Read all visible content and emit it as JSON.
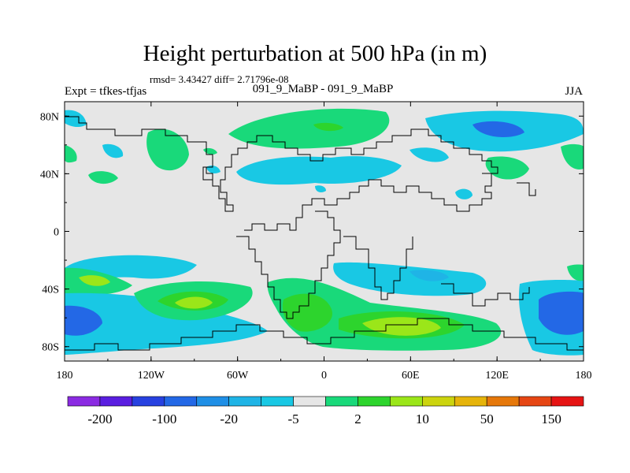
{
  "header": {
    "title": "Height perturbation at 500 hPa (in m)",
    "stats": "rmsd= 3.43427 diff= 2.71796e-08",
    "left_label": "Expt = tfkes-tfjas",
    "center_label": "091_9_MaBP - 091_9_MaBP",
    "right_label": "JJA"
  },
  "chart_data": {
    "type": "heatmap",
    "title": "Height perturbation at 500 hPa (in m)",
    "x_ticks": [
      {
        "value": -180,
        "label": "180"
      },
      {
        "value": -120,
        "label": "120W"
      },
      {
        "value": -60,
        "label": "60W"
      },
      {
        "value": 0,
        "label": "0"
      },
      {
        "value": 60,
        "label": "60E"
      },
      {
        "value": 120,
        "label": "120E"
      },
      {
        "value": 180,
        "label": "180"
      }
    ],
    "y_ticks": [
      {
        "value": 80,
        "label": "80N"
      },
      {
        "value": 40,
        "label": "40N"
      },
      {
        "value": 0,
        "label": "0"
      },
      {
        "value": -40,
        "label": "40S"
      },
      {
        "value": -80,
        "label": "80S"
      }
    ],
    "xlim": [
      -180,
      180
    ],
    "ylim": [
      -90,
      90
    ],
    "colorbar": {
      "colors": [
        "#8b2be2",
        "#5a1ee0",
        "#2741e0",
        "#2368e6",
        "#1f8fe6",
        "#1fb4e6",
        "#19c8e4",
        "#e6e6e6",
        "#19d97a",
        "#2dd42d",
        "#9be619",
        "#ccd40e",
        "#e6b40a",
        "#e6780a",
        "#e64614",
        "#e61414"
      ],
      "labels": [
        "-200",
        "-100",
        "-20",
        "-5",
        "2",
        "10",
        "50",
        "150"
      ]
    },
    "field": [
      {
        "lon": -178,
        "lat": 82,
        "value": -5
      },
      {
        "lon": -175,
        "lat": 65,
        "value": 5
      },
      {
        "lon": -150,
        "lat": 58,
        "value": -5
      },
      {
        "lon": -165,
        "lat": 43,
        "value": 5
      },
      {
        "lon": -95,
        "lat": 48,
        "value": 5
      },
      {
        "lon": -77,
        "lat": 57,
        "value": 2
      },
      {
        "lon": -72,
        "lat": 42,
        "value": -5
      },
      {
        "lon": -28,
        "lat": 82,
        "value": 5
      },
      {
        "lon": 0,
        "lat": 78,
        "value": 10
      },
      {
        "lon": 27,
        "lat": 50,
        "value": -5
      },
      {
        "lon": 55,
        "lat": 54,
        "value": -5
      },
      {
        "lon": 105,
        "lat": 60,
        "value": -20
      },
      {
        "lon": 140,
        "lat": 72,
        "value": -5
      },
      {
        "lon": 140,
        "lat": 48,
        "value": 5
      },
      {
        "lon": 178,
        "lat": 55,
        "value": 5
      },
      {
        "lon": 125,
        "lat": 26,
        "value": -5
      },
      {
        "lon": -170,
        "lat": -33,
        "value": 50
      },
      {
        "lon": -112,
        "lat": -50,
        "value": 50
      },
      {
        "lon": -158,
        "lat": -68,
        "value": -20
      },
      {
        "lon": -125,
        "lat": -27,
        "value": -5
      },
      {
        "lon": -45,
        "lat": -70,
        "value": -5
      },
      {
        "lon": 0,
        "lat": -50,
        "value": 10
      },
      {
        "lon": 65,
        "lat": -68,
        "value": 50
      },
      {
        "lon": 65,
        "lat": -35,
        "value": -5
      },
      {
        "lon": 160,
        "lat": -60,
        "value": -20
      },
      {
        "lon": 175,
        "lat": -30,
        "value": 5
      }
    ]
  }
}
